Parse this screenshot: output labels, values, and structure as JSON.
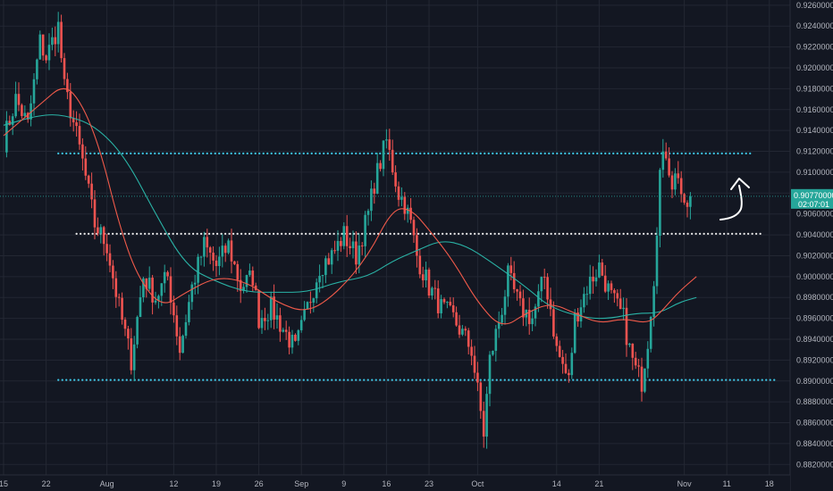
{
  "chart_data": {
    "type": "candlestick",
    "instrument": "",
    "ylim": [
      0.881,
      0.9265
    ],
    "y_ticks": [
      "0.926000000",
      "0.924000000",
      "0.922000000",
      "0.920000000",
      "0.918000000",
      "0.916000000",
      "0.914000000",
      "0.912000000",
      "0.910000000",
      "0.908000000",
      "0.906000000",
      "0.904000000",
      "0.902000000",
      "0.900000000",
      "0.898000000",
      "0.896000000",
      "0.894000000",
      "0.892000000",
      "0.890000000",
      "0.888000000",
      "0.886000000",
      "0.884000000",
      "0.882000000"
    ],
    "x_ticks": [
      "15",
      "22",
      "Aug",
      "12",
      "19",
      "26",
      "Sep",
      "9",
      "16",
      "23",
      "Oct",
      "14",
      "21",
      "Nov",
      "11",
      "18"
    ],
    "x_tick_positions": [
      0,
      7,
      17,
      28,
      35,
      42,
      49,
      56,
      63,
      70,
      78,
      91,
      98,
      112,
      119,
      126
    ],
    "x_range": [
      0,
      128
    ],
    "current_price": {
      "value": 0.9077,
      "label": "0.907700000",
      "countdown": "02:07:01",
      "color": "#26a69a"
    },
    "colors": {
      "up": "#26a69a",
      "down": "#ef5350",
      "ma_fast": "#f05a4a",
      "ma_slow": "#2ab3a6",
      "cyan_line": "#3ec7e6",
      "white_line": "#e6e6e6",
      "grid": "#232733",
      "background": "#131722"
    },
    "horizontal_levels": [
      {
        "value": 0.9118,
        "x_from": 9,
        "x_to": 123,
        "style": "dotted",
        "color": "#3ec7e6"
      },
      {
        "value": 0.9041,
        "x_from": 12,
        "x_to": 125,
        "style": "dotted",
        "color": "#e6e6e6"
      },
      {
        "value": 0.8901,
        "x_from": 9,
        "x_to": 127,
        "style": "dotted",
        "color": "#3ec7e6"
      }
    ],
    "close_anchors": [
      [
        0,
        0.913
      ],
      [
        2,
        0.917
      ],
      [
        4,
        0.9145
      ],
      [
        6,
        0.9225
      ],
      [
        7,
        0.921
      ],
      [
        9,
        0.924
      ],
      [
        10,
        0.918
      ],
      [
        11,
        0.916
      ],
      [
        13,
        0.911
      ],
      [
        15,
        0.905
      ],
      [
        17,
        0.903
      ],
      [
        19,
        0.897
      ],
      [
        21,
        0.892
      ],
      [
        23,
        0.9
      ],
      [
        25,
        0.898
      ],
      [
        27,
        0.9
      ],
      [
        29,
        0.893
      ],
      [
        31,
        0.899
      ],
      [
        33,
        0.903
      ],
      [
        35,
        0.901
      ],
      [
        37,
        0.903
      ],
      [
        39,
        0.899
      ],
      [
        41,
        0.9
      ],
      [
        42,
        0.896
      ],
      [
        44,
        0.897
      ],
      [
        46,
        0.895
      ],
      [
        48,
        0.893
      ],
      [
        50,
        0.897
      ],
      [
        52,
        0.901
      ],
      [
        54,
        0.902
      ],
      [
        56,
        0.904
      ],
      [
        58,
        0.902
      ],
      [
        60,
        0.906
      ],
      [
        61,
        0.909
      ],
      [
        62,
        0.911
      ],
      [
        63,
        0.913
      ],
      [
        65,
        0.908
      ],
      [
        66,
        0.907
      ],
      [
        67,
        0.905
      ],
      [
        68,
        0.902
      ],
      [
        70,
        0.899
      ],
      [
        72,
        0.897
      ],
      [
        74,
        0.896
      ],
      [
        76,
        0.894
      ],
      [
        77,
        0.893
      ],
      [
        78,
        0.889
      ],
      [
        79,
        0.885
      ],
      [
        80,
        0.892
      ],
      [
        82,
        0.897
      ],
      [
        83,
        0.9
      ],
      [
        85,
        0.897
      ],
      [
        87,
        0.896
      ],
      [
        89,
        0.9
      ],
      [
        90,
        0.897
      ],
      [
        91,
        0.893
      ],
      [
        93,
        0.89
      ],
      [
        94,
        0.896
      ],
      [
        96,
        0.899
      ],
      [
        98,
        0.901
      ],
      [
        100,
        0.898
      ],
      [
        102,
        0.896
      ],
      [
        103,
        0.893
      ],
      [
        104,
        0.891
      ],
      [
        105,
        0.89
      ],
      [
        106,
        0.894
      ],
      [
        107,
        0.9
      ],
      [
        108,
        0.91
      ],
      [
        109,
        0.912
      ],
      [
        110,
        0.909
      ],
      [
        111,
        0.91
      ],
      [
        112,
        0.906
      ],
      [
        113,
        0.9077
      ]
    ],
    "ma_fast": [
      [
        0,
        0.9135
      ],
      [
        6,
        0.9165
      ],
      [
        10,
        0.9185
      ],
      [
        13,
        0.9165
      ],
      [
        16,
        0.912
      ],
      [
        19,
        0.905
      ],
      [
        22,
        0.9
      ],
      [
        26,
        0.897
      ],
      [
        30,
        0.8985
      ],
      [
        35,
        0.9
      ],
      [
        40,
        0.8995
      ],
      [
        45,
        0.8975
      ],
      [
        50,
        0.8965
      ],
      [
        55,
        0.8985
      ],
      [
        60,
        0.902
      ],
      [
        64,
        0.9065
      ],
      [
        67,
        0.9065
      ],
      [
        70,
        0.9045
      ],
      [
        74,
        0.9015
      ],
      [
        78,
        0.8975
      ],
      [
        82,
        0.895
      ],
      [
        86,
        0.8965
      ],
      [
        90,
        0.8975
      ],
      [
        94,
        0.8965
      ],
      [
        98,
        0.8955
      ],
      [
        102,
        0.896
      ],
      [
        106,
        0.8955
      ],
      [
        108,
        0.8965
      ],
      [
        111,
        0.8985
      ],
      [
        114,
        0.9
      ]
    ],
    "ma_slow": [
      [
        0,
        0.9145
      ],
      [
        6,
        0.9155
      ],
      [
        10,
        0.9155
      ],
      [
        15,
        0.9145
      ],
      [
        20,
        0.9115
      ],
      [
        25,
        0.906
      ],
      [
        30,
        0.901
      ],
      [
        35,
        0.8995
      ],
      [
        40,
        0.8985
      ],
      [
        45,
        0.8985
      ],
      [
        50,
        0.8985
      ],
      [
        55,
        0.8995
      ],
      [
        60,
        0.9
      ],
      [
        64,
        0.9015
      ],
      [
        68,
        0.9025
      ],
      [
        72,
        0.9035
      ],
      [
        76,
        0.903
      ],
      [
        80,
        0.9015
      ],
      [
        86,
        0.899
      ],
      [
        90,
        0.897
      ],
      [
        96,
        0.896
      ],
      [
        100,
        0.896
      ],
      [
        104,
        0.8965
      ],
      [
        108,
        0.8965
      ],
      [
        111,
        0.8975
      ],
      [
        114,
        0.898
      ]
    ],
    "annotation": {
      "type": "hand-drawn-arrow",
      "direction": "up",
      "color": "#ffffff"
    }
  }
}
